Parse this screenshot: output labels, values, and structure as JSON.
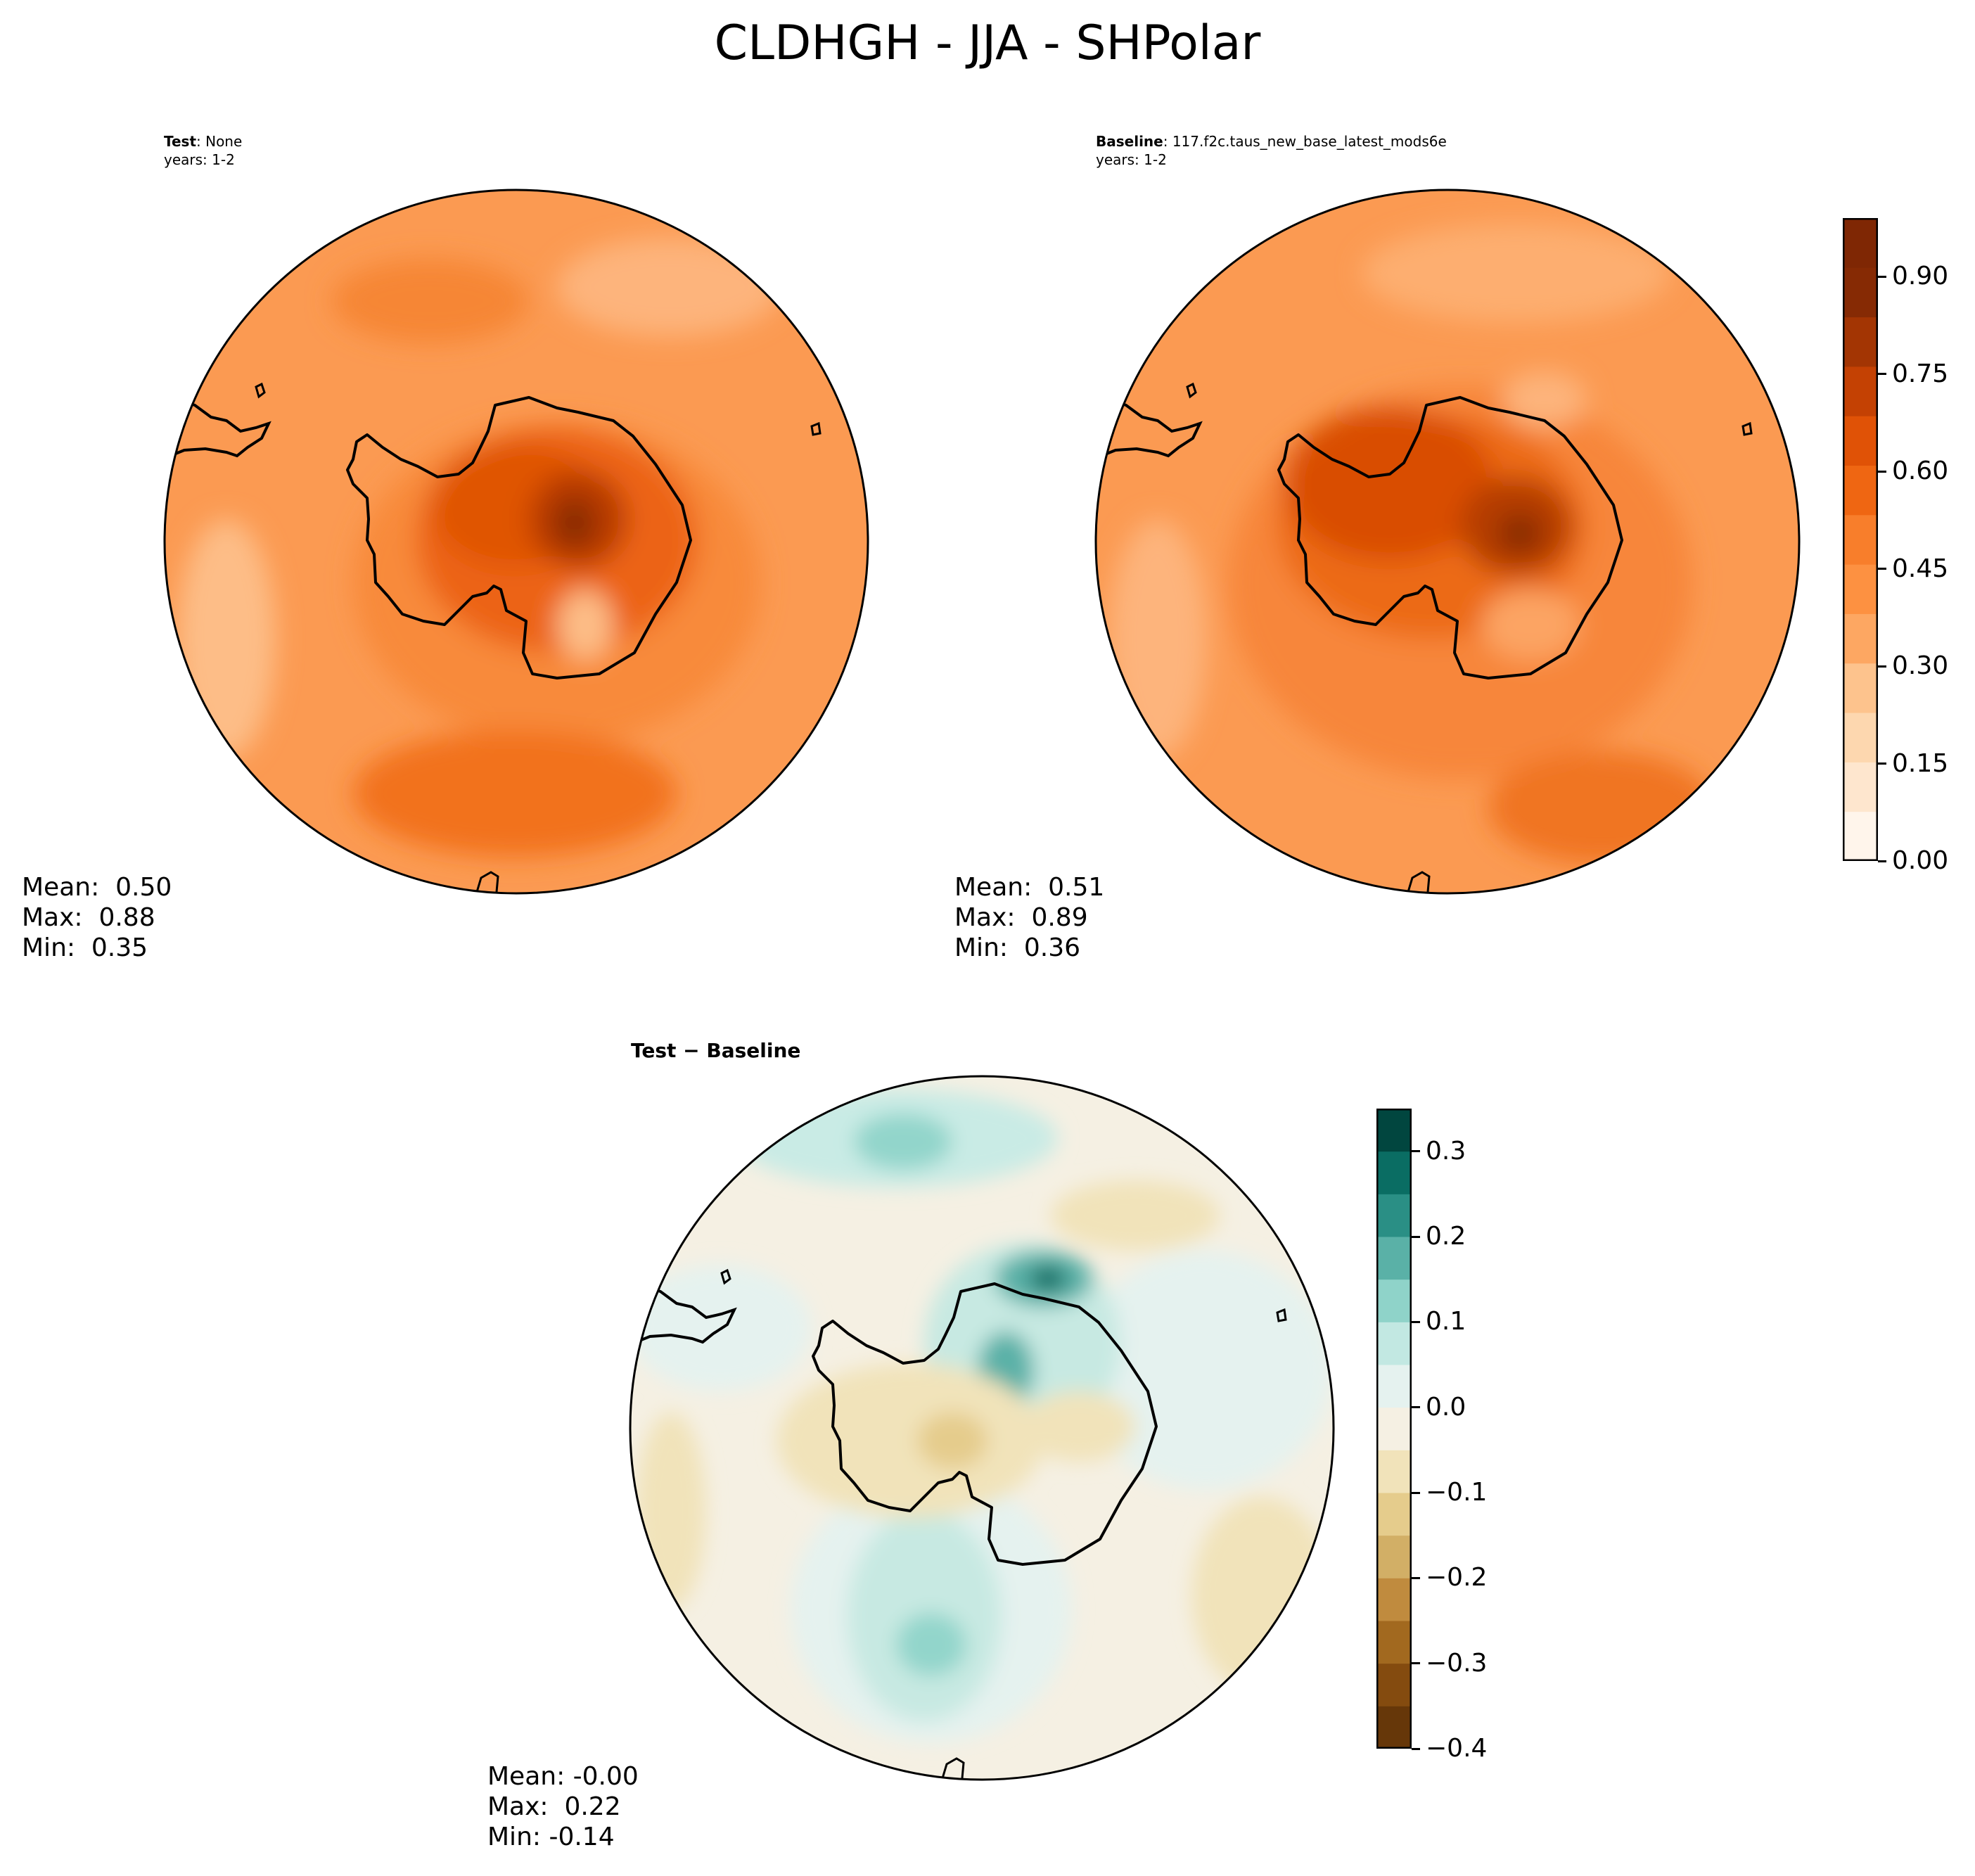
{
  "title": "CLDHGH - JJA - SHPolar",
  "panels": [
    {
      "id": "test",
      "label_bold": "Test",
      "label_rest": ": None",
      "years": "years: 1-2",
      "stats": {
        "mean": "Mean:  0.50",
        "max": "Max:  0.88",
        "min": "Min:  0.35"
      }
    },
    {
      "id": "baseline",
      "label_bold": "Baseline",
      "label_rest": ": 117.f2c.taus_new_base_latest_mods6e",
      "years": "years: 1-2",
      "stats": {
        "mean": "Mean:  0.51",
        "max": "Max:  0.89",
        "min": "Min:  0.36"
      }
    },
    {
      "id": "diff",
      "label_bold": "Test − Baseline",
      "label_rest": "",
      "years": "",
      "stats": {
        "mean": "Mean: -0.00",
        "max": "Max:  0.22",
        "min": "Min: -0.14"
      }
    }
  ],
  "colorbar_main": {
    "ticks": [
      "0.00",
      "0.15",
      "0.30",
      "0.45",
      "0.60",
      "0.75",
      "0.90"
    ],
    "colors": [
      "#fff5eb",
      "#fee6ce",
      "#fdd7af",
      "#fdc38d",
      "#fda762",
      "#fd9141",
      "#f87e2b",
      "#ef6612",
      "#e05206",
      "#c44103",
      "#a33503",
      "#862a04",
      "#7f2704"
    ]
  },
  "colorbar_diff": {
    "ticks": [
      "0.3",
      "0.2",
      "0.1",
      "0.0",
      "−0.1",
      "−0.2",
      "−0.3",
      "−0.4"
    ],
    "colors": [
      "#01463f",
      "#0a6d63",
      "#2a8f85",
      "#5ab1a7",
      "#8fd3c9",
      "#c2e8e2",
      "#e5f2ef",
      "#f5f0e3",
      "#f1e3ba",
      "#e5cc8c",
      "#d2af66",
      "#c08b3e",
      "#a2691f",
      "#844b0f",
      "#663709"
    ]
  },
  "chart_data": {
    "type": "heatmap",
    "title": "CLDHGH - JJA - SHPolar",
    "projection": "south-polar-stereographic",
    "panels": [
      {
        "name": "Test",
        "mean": 0.5,
        "max": 0.88,
        "min": 0.35
      },
      {
        "name": "Baseline",
        "mean": 0.51,
        "max": 0.89,
        "min": 0.36
      },
      {
        "name": "Test − Baseline",
        "mean": -0.0,
        "max": 0.22,
        "min": -0.14
      }
    ],
    "colorbar_main_range": [
      0.0,
      0.99
    ],
    "colorbar_diff_range": [
      -0.4,
      0.35
    ]
  }
}
